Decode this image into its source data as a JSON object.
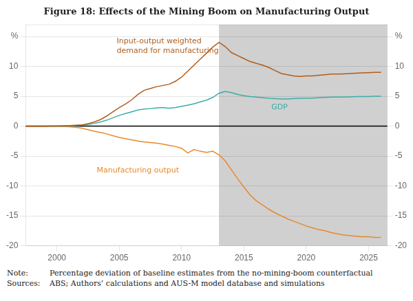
{
  "chart_data": {
    "type": "line",
    "title": "Figure 18: Effects of the Mining Boom on Manufacturing Output",
    "x": [
      1997.5,
      1998,
      1998.5,
      1999,
      1999.5,
      2000,
      2000.5,
      2001,
      2001.5,
      2002,
      2002.5,
      2003,
      2003.5,
      2004,
      2004.5,
      2005,
      2005.5,
      2006,
      2006.5,
      2007,
      2007.5,
      2008,
      2008.5,
      2009,
      2009.5,
      2010,
      2010.5,
      2011,
      2011.5,
      2012,
      2012.5,
      2013,
      2013.5,
      2014,
      2014.5,
      2015,
      2015.5,
      2016,
      2016.5,
      2017,
      2017.5,
      2018,
      2018.5,
      2019,
      2019.5,
      2020,
      2020.5,
      2021,
      2021.5,
      2022,
      2022.5,
      2023,
      2023.5,
      2024,
      2024.5,
      2025,
      2025.5,
      2026
    ],
    "series": [
      {
        "color": "#b05c1a",
        "values": [
          -0.02,
          -0.02,
          -0.01,
          -0.01,
          0.0,
          0.0,
          0.05,
          0.1,
          0.15,
          0.2,
          0.4,
          0.7,
          1.1,
          1.7,
          2.4,
          3.1,
          3.7,
          4.4,
          5.3,
          6.0,
          6.3,
          6.6,
          6.8,
          7.0,
          7.5,
          8.2,
          9.2,
          10.2,
          11.2,
          12.2,
          13.2,
          14.0,
          13.3,
          12.3,
          11.8,
          11.3,
          10.8,
          10.5,
          10.2,
          9.8,
          9.3,
          8.8,
          8.6,
          8.4,
          8.3,
          8.4,
          8.4,
          8.5,
          8.6,
          8.7,
          8.7,
          8.75,
          8.8,
          8.85,
          8.9,
          8.95,
          9.0,
          9.0
        ]
      },
      {
        "color": "#3aada8",
        "values": [
          0.0,
          0.0,
          0.0,
          0.0,
          0.0,
          0.0,
          0.0,
          0.03,
          0.08,
          0.15,
          0.25,
          0.45,
          0.7,
          1.0,
          1.4,
          1.8,
          2.1,
          2.4,
          2.7,
          2.85,
          2.95,
          3.05,
          3.1,
          3.0,
          3.1,
          3.3,
          3.5,
          3.75,
          4.05,
          4.35,
          4.8,
          5.5,
          5.8,
          5.6,
          5.3,
          5.1,
          4.95,
          4.85,
          4.75,
          4.65,
          4.6,
          4.55,
          4.55,
          4.6,
          4.65,
          4.65,
          4.7,
          4.75,
          4.8,
          4.85,
          4.85,
          4.87,
          4.9,
          4.95,
          4.95,
          4.95,
          5.0,
          5.0
        ]
      },
      {
        "color": "#e8882a",
        "values": [
          0.0,
          0.0,
          0.0,
          0.0,
          0.0,
          0.0,
          -0.05,
          -0.1,
          -0.2,
          -0.35,
          -0.6,
          -0.85,
          -1.05,
          -1.3,
          -1.6,
          -1.9,
          -2.1,
          -2.3,
          -2.5,
          -2.65,
          -2.75,
          -2.85,
          -3.0,
          -3.2,
          -3.4,
          -3.7,
          -4.5,
          -3.9,
          -4.2,
          -4.4,
          -4.2,
          -4.8,
          -5.8,
          -7.3,
          -8.8,
          -10.2,
          -11.5,
          -12.5,
          -13.2,
          -13.9,
          -14.5,
          -15.0,
          -15.5,
          -15.9,
          -16.3,
          -16.7,
          -17.0,
          -17.3,
          -17.5,
          -17.8,
          -18.0,
          -18.2,
          -18.3,
          -18.4,
          -18.5,
          -18.5,
          -18.6,
          -18.6
        ]
      }
    ],
    "xlim": [
      1997.5,
      2026.5
    ],
    "xticks": [
      2000,
      2005,
      2010,
      2015,
      2020,
      2025
    ],
    "ylim": [
      -20,
      17
    ],
    "yticks": [
      -20,
      -15,
      -10,
      -5,
      0,
      5,
      10,
      {
        "value": 15,
        "label": "%"
      }
    ],
    "y2lim": [
      -20,
      17
    ],
    "y2ticks": [
      -20,
      -15,
      -10,
      -5,
      0,
      5,
      10,
      {
        "value": 15,
        "label": "%"
      }
    ],
    "grid": "y",
    "annotations": [
      {
        "type": "span",
        "x": [
          2013.0,
          2026.5
        ],
        "color": "#d0d0d0"
      },
      {
        "type": "hline",
        "y": 0,
        "color": "#000000"
      },
      {
        "type": "text",
        "x": 2004.8,
        "y": 14.8,
        "text": "Input-output weighted\ndemand for manufacturing",
        "color": "#b05c1a"
      },
      {
        "type": "text",
        "x": 2003.2,
        "y": -6.8,
        "text": "Manufacturing output",
        "color": "#e8882a"
      },
      {
        "type": "text",
        "x": 2017.2,
        "y": 3.8,
        "text": "GDP",
        "color": "#3aada8"
      }
    ],
    "notes": [
      {
        "label": "Note:",
        "text": "Percentage deviation of baseline estimates from the no-mining-boom counterfactual"
      },
      {
        "label": "Sources:",
        "text": "ABS; Authors’ calculations and AUS-M model database and simulations"
      }
    ]
  }
}
